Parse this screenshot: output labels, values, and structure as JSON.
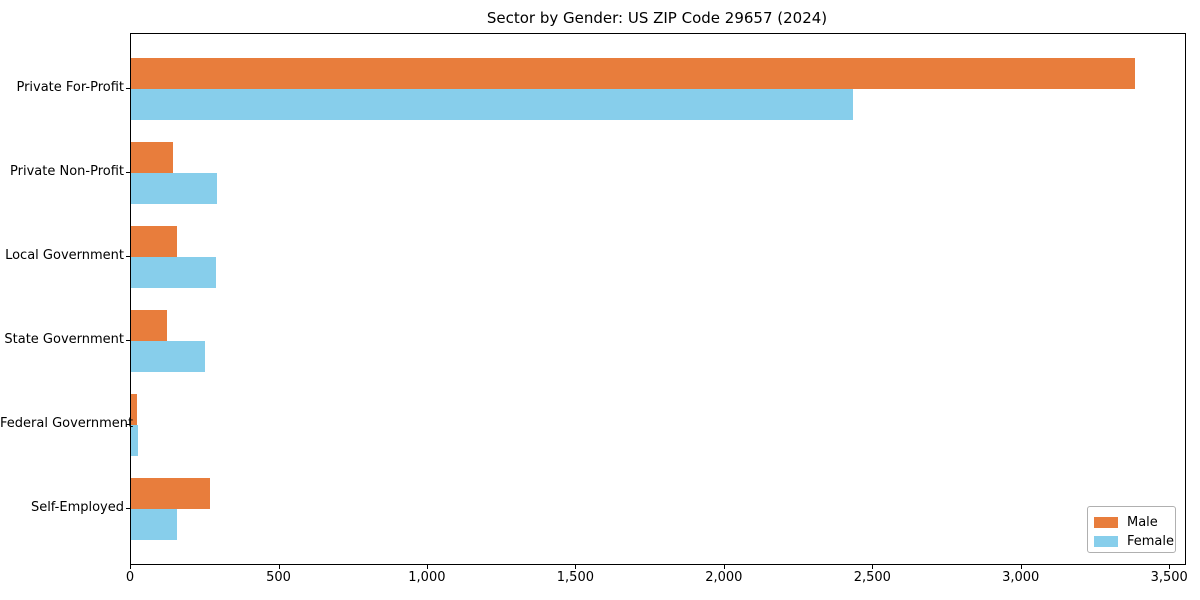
{
  "chart_data": {
    "type": "bar",
    "orientation": "horizontal",
    "title": "Sector by Gender: US ZIP Code 29657 (2024)",
    "xlabel": "",
    "ylabel": "",
    "categories": [
      "Private For-Profit",
      "Private Non-Profit",
      "Local Government",
      "State Government",
      "Federal Government",
      "Self-Employed"
    ],
    "series": [
      {
        "name": "Male",
        "color": "#e87d3c",
        "values": [
          3380,
          140,
          155,
          120,
          20,
          265
        ]
      },
      {
        "name": "Female",
        "color": "#87ceeb",
        "values": [
          2430,
          290,
          285,
          250,
          25,
          155
        ]
      }
    ],
    "xlim": [
      0,
      3550
    ],
    "xticks": [
      0,
      500,
      1000,
      1500,
      2000,
      2500,
      3000,
      3500
    ],
    "xtick_labels": [
      "0",
      "500",
      "1,000",
      "1,500",
      "2,000",
      "2,500",
      "3,000",
      "3,500"
    ],
    "grid": false,
    "legend": {
      "position": "lower right",
      "entries": [
        "Male",
        "Female"
      ]
    }
  }
}
